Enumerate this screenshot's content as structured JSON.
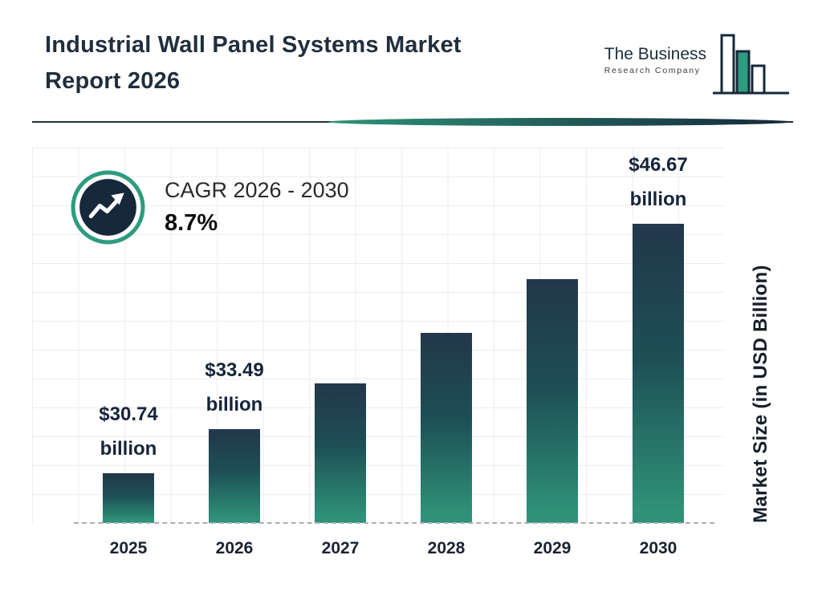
{
  "header": {
    "title_line1": "Industrial Wall Panel Systems Market",
    "title_line2": "Report 2026",
    "logo": {
      "line1": "The Business",
      "line2": "Research Company"
    }
  },
  "cagr": {
    "label": "CAGR 2026 - 2030",
    "value": "8.7%"
  },
  "chart_data": {
    "type": "bar",
    "title": "Industrial Wall Panel Systems Market Report 2026",
    "categories": [
      "2025",
      "2026",
      "2027",
      "2028",
      "2029",
      "2030"
    ],
    "values": [
      30.74,
      33.49,
      36.4,
      39.6,
      43.0,
      46.67
    ],
    "bar_labels": [
      {
        "amount": "$30.74",
        "unit": "billion"
      },
      {
        "amount": "$33.49",
        "unit": "billion"
      },
      null,
      null,
      null,
      {
        "amount": "$46.67",
        "unit": "billion"
      }
    ],
    "xlabel": "",
    "ylabel": "Market Size (in USD Billion)",
    "unit": "USD Billion",
    "ylim": [
      27.6,
      51.3
    ],
    "grid": true,
    "legend": "none",
    "colors": {
      "bar_top": "#22374b",
      "bar_bottom": "#2f9278",
      "accent_teal": "#2d9c7f",
      "navy": "#16283a"
    }
  }
}
